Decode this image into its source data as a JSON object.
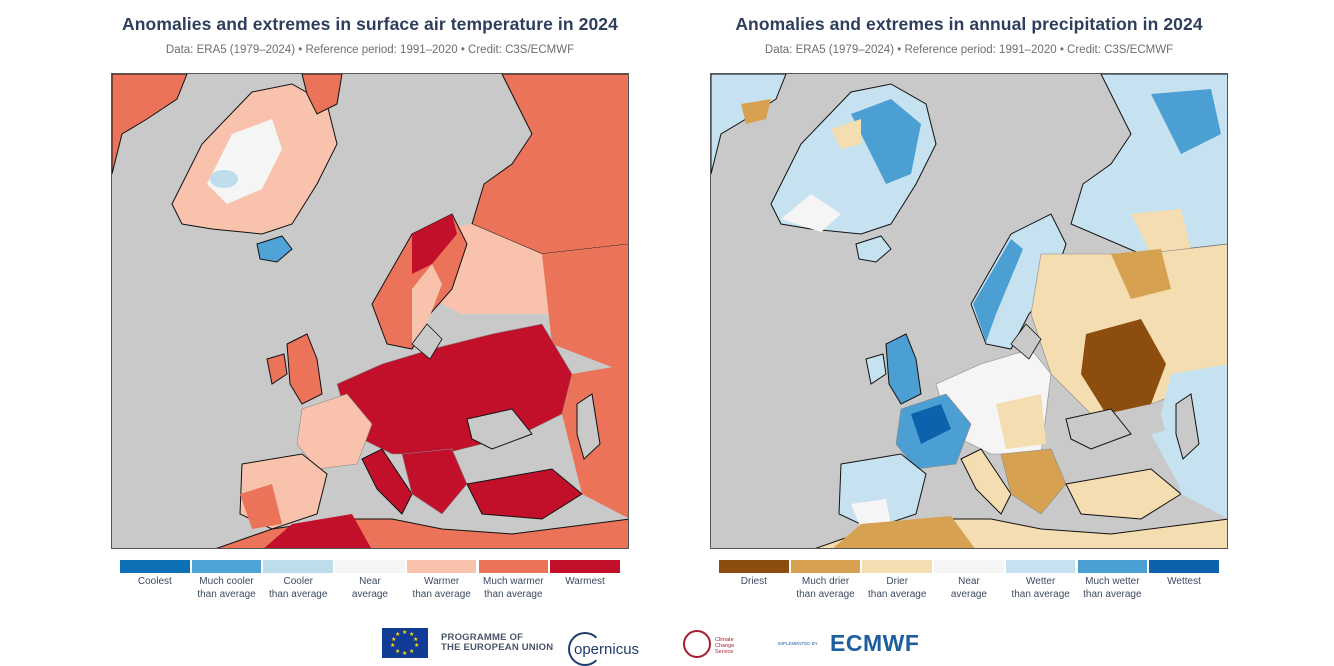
{
  "panels": [
    {
      "title": "Anomalies and extremes in surface air temperature in 2024",
      "subtitle": "Data: ERA5 (1979–2024) • Reference period: 1991–2020 • Credit: C3S/ECMWF",
      "legend": [
        {
          "label": "Coolest",
          "color": "#0d6fb5"
        },
        {
          "label": "Much cooler\nthan average",
          "color": "#4fa3d6"
        },
        {
          "label": "Cooler\nthan average",
          "color": "#bddcec"
        },
        {
          "label": "Near\naverage",
          "color": "#f5f5f5"
        },
        {
          "label": "Warmer\nthan average",
          "color": "#f8c2ac"
        },
        {
          "label": "Much warmer\nthan average",
          "color": "#ea735a"
        },
        {
          "label": "Warmest",
          "color": "#c2102b"
        }
      ]
    },
    {
      "title": "Anomalies and extremes in annual precipitation in 2024",
      "subtitle": "Data: ERA5 (1979–2024) • Reference period: 1991–2020 • Credit: C3S/ECMWF",
      "legend": [
        {
          "label": "Driest",
          "color": "#8c4d0f"
        },
        {
          "label": "Much drier\nthan average",
          "color": "#d6a251"
        },
        {
          "label": "Drier\nthan average",
          "color": "#f4ddb0"
        },
        {
          "label": "Near\naverage",
          "color": "#f5f5f5"
        },
        {
          "label": "Wetter\nthan average",
          "color": "#c6e1f0"
        },
        {
          "label": "Much wetter\nthan average",
          "color": "#4b9fd3"
        },
        {
          "label": "Wettest",
          "color": "#0d63ab"
        }
      ]
    }
  ],
  "map_colors": {
    "ocean": "#c9c9c9",
    "coast": "#111111",
    "border": "#8a8a8a"
  },
  "footer": {
    "programme": "PROGRAMME OF\nTHE EUROPEAN UNION",
    "copernicus": "opernicus",
    "c3s": "Climate\nChange Service",
    "implemented_by": "IMPLEMENTED BY",
    "ecmwf": "ECMWF"
  }
}
